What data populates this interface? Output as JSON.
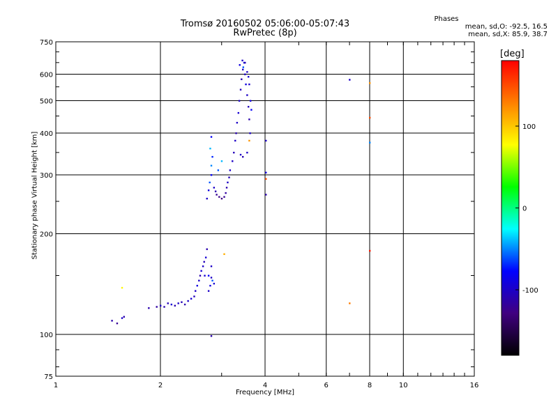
{
  "chart_data": {
    "type": "scatter",
    "title": "Tromsø 20160502 05:06:00-05:07:43",
    "subtitle": "RwPretec (8p)",
    "xlabel": "Frequency [MHz]",
    "ylabel": "Stationary phase Virtual Height [km]",
    "x_scale": "log",
    "y_scale": "log",
    "xlim": [
      1,
      16
    ],
    "ylim": [
      75,
      750
    ],
    "x_ticks": [
      "1",
      "2",
      "4",
      "6",
      "8",
      "10",
      "16"
    ],
    "y_ticks": [
      "75",
      "100",
      "200",
      "300",
      "400",
      "500",
      "600",
      "750"
    ],
    "grid": true,
    "phase_heading": "Phases",
    "phase_o": "mean, sd,O: -92.5, 16.5",
    "phase_x": "mean, sd,X:  85.9, 38.7",
    "colorbar": {
      "label": "[deg]",
      "range": [
        -180,
        180
      ],
      "ticks": [
        "100",
        "0",
        "-100"
      ],
      "colors": [
        "#ff0000",
        "#ff8000",
        "#ffff00",
        "#00ff00",
        "#00ffff",
        "#0000ff",
        "#400080",
        "#000000"
      ]
    },
    "points": [
      [
        1.45,
        110,
        -110
      ],
      [
        1.5,
        108,
        -120
      ],
      [
        1.55,
        112,
        -100
      ],
      [
        1.57,
        113,
        -110
      ],
      [
        1.55,
        138,
        80
      ],
      [
        1.85,
        120,
        -110
      ],
      [
        1.95,
        121,
        -115
      ],
      [
        2.0,
        122,
        -100
      ],
      [
        2.05,
        121,
        -110
      ],
      [
        2.1,
        124,
        -105
      ],
      [
        2.15,
        123,
        -95
      ],
      [
        2.2,
        122,
        -110
      ],
      [
        2.25,
        124,
        -100
      ],
      [
        2.3,
        125,
        -105
      ],
      [
        2.35,
        123,
        -110
      ],
      [
        2.4,
        126,
        -100
      ],
      [
        2.45,
        128,
        -95
      ],
      [
        2.5,
        130,
        -105
      ],
      [
        2.52,
        135,
        -100
      ],
      [
        2.55,
        140,
        -90
      ],
      [
        2.58,
        145,
        -100
      ],
      [
        2.6,
        150,
        -110
      ],
      [
        2.62,
        155,
        -95
      ],
      [
        2.65,
        160,
        -100
      ],
      [
        2.67,
        165,
        -105
      ],
      [
        2.7,
        170,
        -95
      ],
      [
        2.72,
        180,
        -110
      ],
      [
        2.75,
        150,
        -80
      ],
      [
        2.78,
        140,
        -90
      ],
      [
        2.8,
        148,
        -100
      ],
      [
        2.82,
        145,
        -60
      ],
      [
        2.85,
        142,
        -95
      ],
      [
        2.75,
        135,
        -100
      ],
      [
        2.68,
        150,
        -95
      ],
      [
        2.8,
        160,
        -100
      ],
      [
        2.8,
        99,
        -110
      ],
      [
        3.05,
        174,
        110
      ],
      [
        2.72,
        255,
        -100
      ],
      [
        2.75,
        270,
        -90
      ],
      [
        2.77,
        285,
        -60
      ],
      [
        2.8,
        300,
        -80
      ],
      [
        2.8,
        320,
        -50
      ],
      [
        2.82,
        340,
        -70
      ],
      [
        2.78,
        360,
        -40
      ],
      [
        2.8,
        390,
        -80
      ],
      [
        2.85,
        275,
        -100
      ],
      [
        2.88,
        268,
        -110
      ],
      [
        2.9,
        262,
        -120
      ],
      [
        2.95,
        258,
        -125
      ],
      [
        3.0,
        255,
        -130
      ],
      [
        3.05,
        258,
        -120
      ],
      [
        3.08,
        265,
        -115
      ],
      [
        3.1,
        275,
        -110
      ],
      [
        3.12,
        285,
        -100
      ],
      [
        3.15,
        295,
        -105
      ],
      [
        3.17,
        310,
        -100
      ],
      [
        2.93,
        310,
        -60
      ],
      [
        3.0,
        330,
        -40
      ],
      [
        3.22,
        330,
        -100
      ],
      [
        3.25,
        350,
        -105
      ],
      [
        3.28,
        380,
        -100
      ],
      [
        3.3,
        400,
        -110
      ],
      [
        3.32,
        430,
        -100
      ],
      [
        3.35,
        460,
        -95
      ],
      [
        3.37,
        500,
        -100
      ],
      [
        3.4,
        540,
        -105
      ],
      [
        3.42,
        580,
        -110
      ],
      [
        3.45,
        620,
        -100
      ],
      [
        3.48,
        650,
        -95
      ],
      [
        3.5,
        600,
        -100
      ],
      [
        3.52,
        560,
        -90
      ],
      [
        3.55,
        520,
        -100
      ],
      [
        3.58,
        480,
        -105
      ],
      [
        3.6,
        440,
        -110
      ],
      [
        3.62,
        400,
        -100
      ],
      [
        3.6,
        380,
        120
      ],
      [
        3.38,
        640,
        -90
      ],
      [
        3.44,
        660,
        -100
      ],
      [
        3.46,
        630,
        -60
      ],
      [
        3.5,
        650,
        -105
      ],
      [
        3.55,
        610,
        -100
      ],
      [
        3.58,
        590,
        -95
      ],
      [
        3.6,
        560,
        -100
      ],
      [
        3.63,
        500,
        -90
      ],
      [
        3.65,
        470,
        -80
      ],
      [
        3.4,
        345,
        -100
      ],
      [
        3.45,
        340,
        -110
      ],
      [
        3.55,
        350,
        -100
      ],
      [
        4.02,
        380,
        -100
      ],
      [
        4.02,
        305,
        -90
      ],
      [
        4.02,
        292,
        150
      ],
      [
        4.02,
        262,
        -110
      ],
      [
        7.0,
        578,
        -100
      ],
      [
        8.0,
        565,
        120
      ],
      [
        8.0,
        445,
        150
      ],
      [
        8.0,
        375,
        -50
      ],
      [
        8.0,
        178,
        170
      ],
      [
        7.0,
        124,
        130
      ]
    ]
  }
}
